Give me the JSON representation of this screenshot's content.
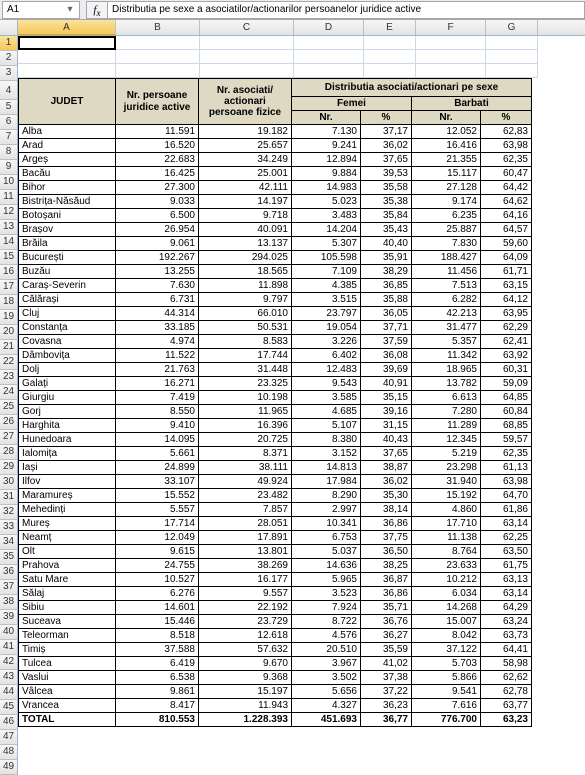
{
  "namebox": "A1",
  "formula": "Distributia pe sexe a asociatilor/actionarilor persoanelor juridice active",
  "columns": [
    "A",
    "B",
    "C",
    "D",
    "E",
    "F",
    "G"
  ],
  "header": {
    "judet": "JUDET",
    "persoane": "Nr. persoane juridice active",
    "asociati": "Nr. asociati/ actionari persoane fizice",
    "distrib": "Distributia asociati/actionari pe sexe",
    "femei": "Femei",
    "barbati": "Barbati",
    "nr": "Nr.",
    "pct": "%"
  },
  "rows": [
    {
      "n": 7,
      "j": "Alba",
      "b": "11.591",
      "c": "19.182",
      "d": "7.130",
      "e": "37,17",
      "f": "12.052",
      "g": "62,83"
    },
    {
      "n": 8,
      "j": "Arad",
      "b": "16.520",
      "c": "25.657",
      "d": "9.241",
      "e": "36,02",
      "f": "16.416",
      "g": "63,98"
    },
    {
      "n": 9,
      "j": "Argeș",
      "b": "22.683",
      "c": "34.249",
      "d": "12.894",
      "e": "37,65",
      "f": "21.355",
      "g": "62,35"
    },
    {
      "n": 10,
      "j": "Bacău",
      "b": "16.425",
      "c": "25.001",
      "d": "9.884",
      "e": "39,53",
      "f": "15.117",
      "g": "60,47"
    },
    {
      "n": 11,
      "j": "Bihor",
      "b": "27.300",
      "c": "42.111",
      "d": "14.983",
      "e": "35,58",
      "f": "27.128",
      "g": "64,42"
    },
    {
      "n": 12,
      "j": "Bistrița-Năsăud",
      "b": "9.033",
      "c": "14.197",
      "d": "5.023",
      "e": "35,38",
      "f": "9.174",
      "g": "64,62"
    },
    {
      "n": 13,
      "j": "Botoșani",
      "b": "6.500",
      "c": "9.718",
      "d": "3.483",
      "e": "35,84",
      "f": "6.235",
      "g": "64,16"
    },
    {
      "n": 14,
      "j": "Brașov",
      "b": "26.954",
      "c": "40.091",
      "d": "14.204",
      "e": "35,43",
      "f": "25.887",
      "g": "64,57"
    },
    {
      "n": 15,
      "j": "Brăila",
      "b": "9.061",
      "c": "13.137",
      "d": "5.307",
      "e": "40,40",
      "f": "7.830",
      "g": "59,60"
    },
    {
      "n": 16,
      "j": "București",
      "b": "192.267",
      "c": "294.025",
      "d": "105.598",
      "e": "35,91",
      "f": "188.427",
      "g": "64,09"
    },
    {
      "n": 17,
      "j": "Buzău",
      "b": "13.255",
      "c": "18.565",
      "d": "7.109",
      "e": "38,29",
      "f": "11.456",
      "g": "61,71"
    },
    {
      "n": 18,
      "j": "Caraș-Severin",
      "b": "7.630",
      "c": "11.898",
      "d": "4.385",
      "e": "36,85",
      "f": "7.513",
      "g": "63,15"
    },
    {
      "n": 19,
      "j": "Călărași",
      "b": "6.731",
      "c": "9.797",
      "d": "3.515",
      "e": "35,88",
      "f": "6.282",
      "g": "64,12"
    },
    {
      "n": 20,
      "j": "Cluj",
      "b": "44.314",
      "c": "66.010",
      "d": "23.797",
      "e": "36,05",
      "f": "42.213",
      "g": "63,95"
    },
    {
      "n": 21,
      "j": "Constanța",
      "b": "33.185",
      "c": "50.531",
      "d": "19.054",
      "e": "37,71",
      "f": "31.477",
      "g": "62,29"
    },
    {
      "n": 22,
      "j": "Covasna",
      "b": "4.974",
      "c": "8.583",
      "d": "3.226",
      "e": "37,59",
      "f": "5.357",
      "g": "62,41"
    },
    {
      "n": 23,
      "j": "Dâmbovița",
      "b": "11.522",
      "c": "17.744",
      "d": "6.402",
      "e": "36,08",
      "f": "11.342",
      "g": "63,92"
    },
    {
      "n": 24,
      "j": "Dolj",
      "b": "21.763",
      "c": "31.448",
      "d": "12.483",
      "e": "39,69",
      "f": "18.965",
      "g": "60,31"
    },
    {
      "n": 25,
      "j": "Galați",
      "b": "16.271",
      "c": "23.325",
      "d": "9.543",
      "e": "40,91",
      "f": "13.782",
      "g": "59,09"
    },
    {
      "n": 26,
      "j": "Giurgiu",
      "b": "7.419",
      "c": "10.198",
      "d": "3.585",
      "e": "35,15",
      "f": "6.613",
      "g": "64,85"
    },
    {
      "n": 27,
      "j": "Gorj",
      "b": "8.550",
      "c": "11.965",
      "d": "4.685",
      "e": "39,16",
      "f": "7.280",
      "g": "60,84"
    },
    {
      "n": 28,
      "j": "Harghita",
      "b": "9.410",
      "c": "16.396",
      "d": "5.107",
      "e": "31,15",
      "f": "11.289",
      "g": "68,85"
    },
    {
      "n": 29,
      "j": "Hunedoara",
      "b": "14.095",
      "c": "20.725",
      "d": "8.380",
      "e": "40,43",
      "f": "12.345",
      "g": "59,57"
    },
    {
      "n": 30,
      "j": "Ialomița",
      "b": "5.661",
      "c": "8.371",
      "d": "3.152",
      "e": "37,65",
      "f": "5.219",
      "g": "62,35"
    },
    {
      "n": 31,
      "j": "Iași",
      "b": "24.899",
      "c": "38.111",
      "d": "14.813",
      "e": "38,87",
      "f": "23.298",
      "g": "61,13"
    },
    {
      "n": 32,
      "j": "Ilfov",
      "b": "33.107",
      "c": "49.924",
      "d": "17.984",
      "e": "36,02",
      "f": "31.940",
      "g": "63,98"
    },
    {
      "n": 33,
      "j": "Maramureș",
      "b": "15.552",
      "c": "23.482",
      "d": "8.290",
      "e": "35,30",
      "f": "15.192",
      "g": "64,70"
    },
    {
      "n": 34,
      "j": "Mehedinți",
      "b": "5.557",
      "c": "7.857",
      "d": "2.997",
      "e": "38,14",
      "f": "4.860",
      "g": "61,86"
    },
    {
      "n": 35,
      "j": "Mureș",
      "b": "17.714",
      "c": "28.051",
      "d": "10.341",
      "e": "36,86",
      "f": "17.710",
      "g": "63,14"
    },
    {
      "n": 36,
      "j": "Neamț",
      "b": "12.049",
      "c": "17.891",
      "d": "6.753",
      "e": "37,75",
      "f": "11.138",
      "g": "62,25"
    },
    {
      "n": 37,
      "j": "Olt",
      "b": "9.615",
      "c": "13.801",
      "d": "5.037",
      "e": "36,50",
      "f": "8.764",
      "g": "63,50"
    },
    {
      "n": 38,
      "j": "Prahova",
      "b": "24.755",
      "c": "38.269",
      "d": "14.636",
      "e": "38,25",
      "f": "23.633",
      "g": "61,75"
    },
    {
      "n": 39,
      "j": "Satu Mare",
      "b": "10.527",
      "c": "16.177",
      "d": "5.965",
      "e": "36,87",
      "f": "10.212",
      "g": "63,13"
    },
    {
      "n": 40,
      "j": "Sălaj",
      "b": "6.276",
      "c": "9.557",
      "d": "3.523",
      "e": "36,86",
      "f": "6.034",
      "g": "63,14"
    },
    {
      "n": 41,
      "j": "Sibiu",
      "b": "14.601",
      "c": "22.192",
      "d": "7.924",
      "e": "35,71",
      "f": "14.268",
      "g": "64,29"
    },
    {
      "n": 42,
      "j": "Suceava",
      "b": "15.446",
      "c": "23.729",
      "d": "8.722",
      "e": "36,76",
      "f": "15.007",
      "g": "63,24"
    },
    {
      "n": 43,
      "j": "Teleorman",
      "b": "8.518",
      "c": "12.618",
      "d": "4.576",
      "e": "36,27",
      "f": "8.042",
      "g": "63,73"
    },
    {
      "n": 44,
      "j": "Timiș",
      "b": "37.588",
      "c": "57.632",
      "d": "20.510",
      "e": "35,59",
      "f": "37.122",
      "g": "64,41"
    },
    {
      "n": 45,
      "j": "Tulcea",
      "b": "6.419",
      "c": "9.670",
      "d": "3.967",
      "e": "41,02",
      "f": "5.703",
      "g": "58,98"
    },
    {
      "n": 46,
      "j": "Vaslui",
      "b": "6.538",
      "c": "9.368",
      "d": "3.502",
      "e": "37,38",
      "f": "5.866",
      "g": "62,62"
    },
    {
      "n": 47,
      "j": "Vâlcea",
      "b": "9.861",
      "c": "15.197",
      "d": "5.656",
      "e": "37,22",
      "f": "9.541",
      "g": "62,78"
    },
    {
      "n": 48,
      "j": "Vrancea",
      "b": "8.417",
      "c": "11.943",
      "d": "4.327",
      "e": "36,23",
      "f": "7.616",
      "g": "63,77"
    }
  ],
  "total": {
    "n": 49,
    "j": "TOTAL",
    "b": "810.553",
    "c": "1.228.393",
    "d": "451.693",
    "e": "36,77",
    "f": "776.700",
    "g": "63,23"
  }
}
